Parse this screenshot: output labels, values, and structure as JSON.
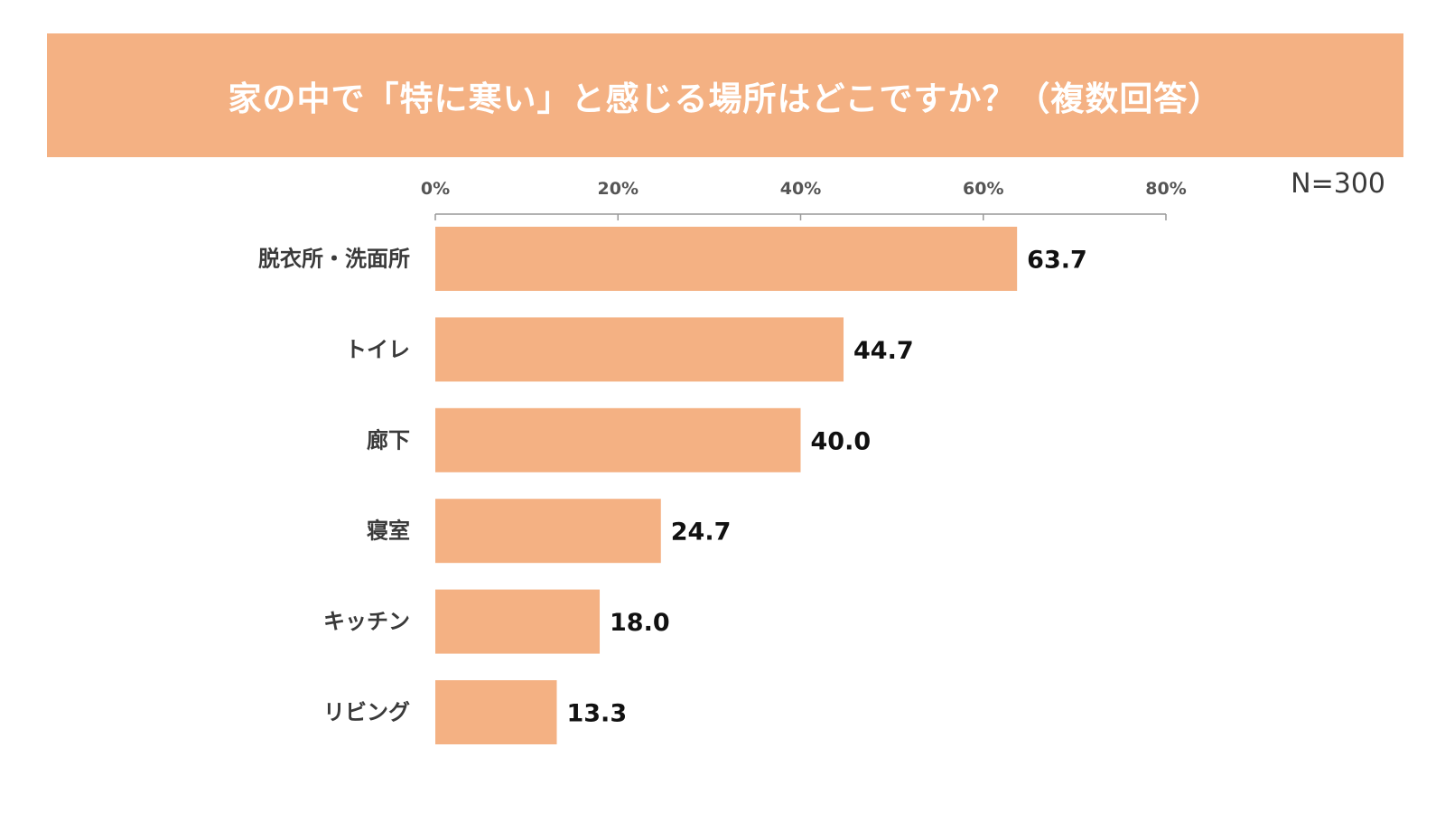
{
  "title": "家の中で「特に寒い」と感じる場所はどこですか？（複数回答）",
  "sample_size": "N=300",
  "colors": {
    "accent": "#F4B183",
    "bar": "#F4B183",
    "axis": "#999999",
    "title_text": "#FFFFFF"
  },
  "chart_data": {
    "type": "bar",
    "orientation": "horizontal",
    "title": "家の中で「特に寒い」と感じる場所はどこですか？（複数回答）",
    "xlabel": "",
    "ylabel": "",
    "xlim": [
      0,
      80
    ],
    "ticks": [
      0,
      20,
      40,
      60,
      80
    ],
    "tick_labels": [
      "0%",
      "20%",
      "40%",
      "60%",
      "80%"
    ],
    "categories": [
      "脱衣所・洗面所",
      "トイレ",
      "廊下",
      "寝室",
      "キッチン",
      "リビング"
    ],
    "values": [
      63.7,
      44.7,
      40.0,
      24.7,
      18.0,
      13.3
    ],
    "value_labels": [
      "63.7",
      "44.7",
      "40.0",
      "24.7",
      "18.0",
      "13.3"
    ],
    "grid": false,
    "legend": "none"
  }
}
